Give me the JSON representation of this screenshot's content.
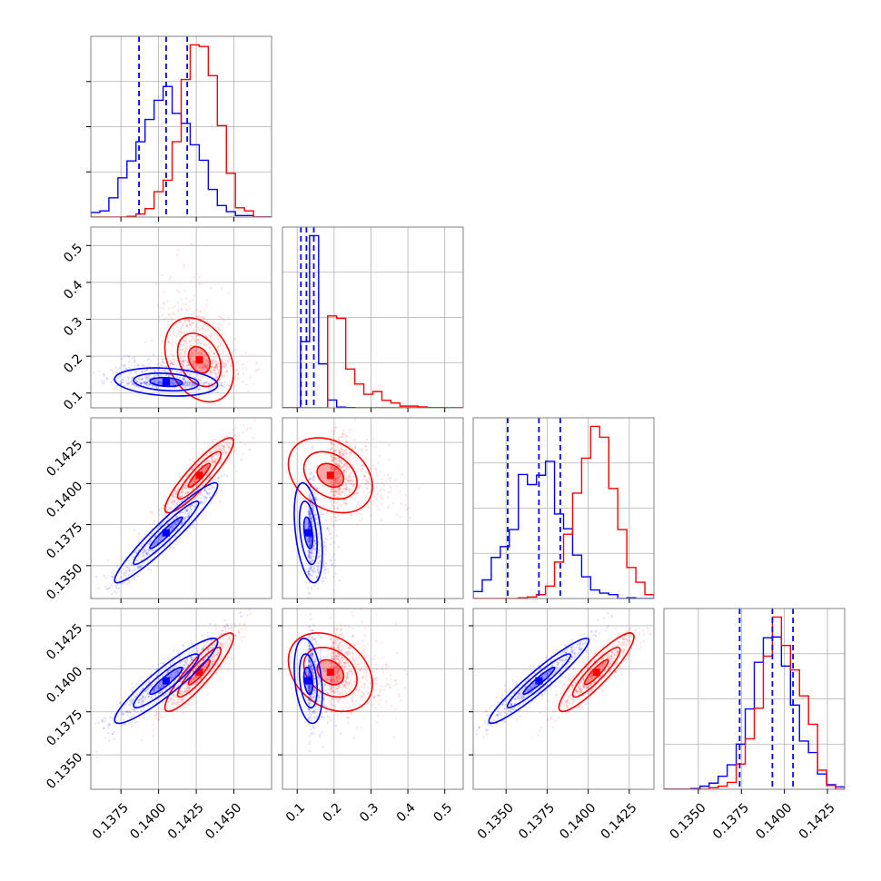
{
  "chart_data": {
    "type": "corner",
    "parameters": [
      "",
      "",
      "",
      ""
    ],
    "series": [
      {
        "name": "",
        "color": "#0000ff",
        "means": [
          0.1405,
          0.13,
          0.137,
          0.1393
        ],
        "sds": [
          0.0018,
          0.02,
          0.0016,
          0.0013
        ],
        "quantiles": {
          "p0": [
            0.1387,
            0.11,
            0.1351,
            0.1374
          ],
          "p1": [
            0.1405,
            0.125,
            0.137,
            0.1393
          ],
          "p2": [
            0.1419,
            0.145,
            0.1383,
            0.1405
          ]
        },
        "correlations": {
          "0-2": 0.95,
          "0-3": 0.92,
          "2-3": 0.95,
          "0-1": -0.2,
          "1-2": -0.4,
          "1-3": -0.3
        }
      },
      {
        "name": "",
        "color": "#ff0000",
        "means": [
          0.1427,
          0.19,
          0.1405,
          0.1398
        ],
        "sds": [
          0.0012,
          0.06,
          0.0012,
          0.0012
        ],
        "correlations": {
          "0-2": 0.9,
          "0-3": 0.9,
          "2-3": 0.9,
          "0-1": -0.3,
          "1-2": -0.3,
          "1-3": -0.3
        }
      }
    ],
    "axes": [
      {
        "range": [
          0.1355,
          0.1475
        ],
        "ticks": [
          0.1375,
          0.14,
          0.1425,
          0.145
        ],
        "tick_labels": [
          "0.1375",
          "0.1400",
          "0.1425",
          "0.1450"
        ]
      },
      {
        "range": [
          0.06,
          0.55
        ],
        "ticks": [
          0.1,
          0.2,
          0.3,
          0.4,
          0.5
        ],
        "tick_labels": [
          "0.1",
          "0.2",
          "0.3",
          "0.4",
          "0.5"
        ]
      },
      {
        "range": [
          0.133,
          0.144
        ],
        "ticks": [
          0.135,
          0.1375,
          0.14,
          0.1425
        ],
        "tick_labels": [
          "0.1350",
          "0.1375",
          "0.1400",
          "0.1425"
        ]
      },
      {
        "range": [
          0.133,
          0.1435
        ],
        "ticks": [
          0.135,
          0.1375,
          0.14,
          0.1425
        ],
        "tick_labels": [
          "0.1350",
          "0.1375",
          "0.1400",
          "0.1425"
        ]
      }
    ],
    "grid": true,
    "colors": {
      "blue": "#0000ff",
      "red": "#ff0000",
      "grid": "#b0b0b0",
      "frame": "#808080"
    }
  }
}
